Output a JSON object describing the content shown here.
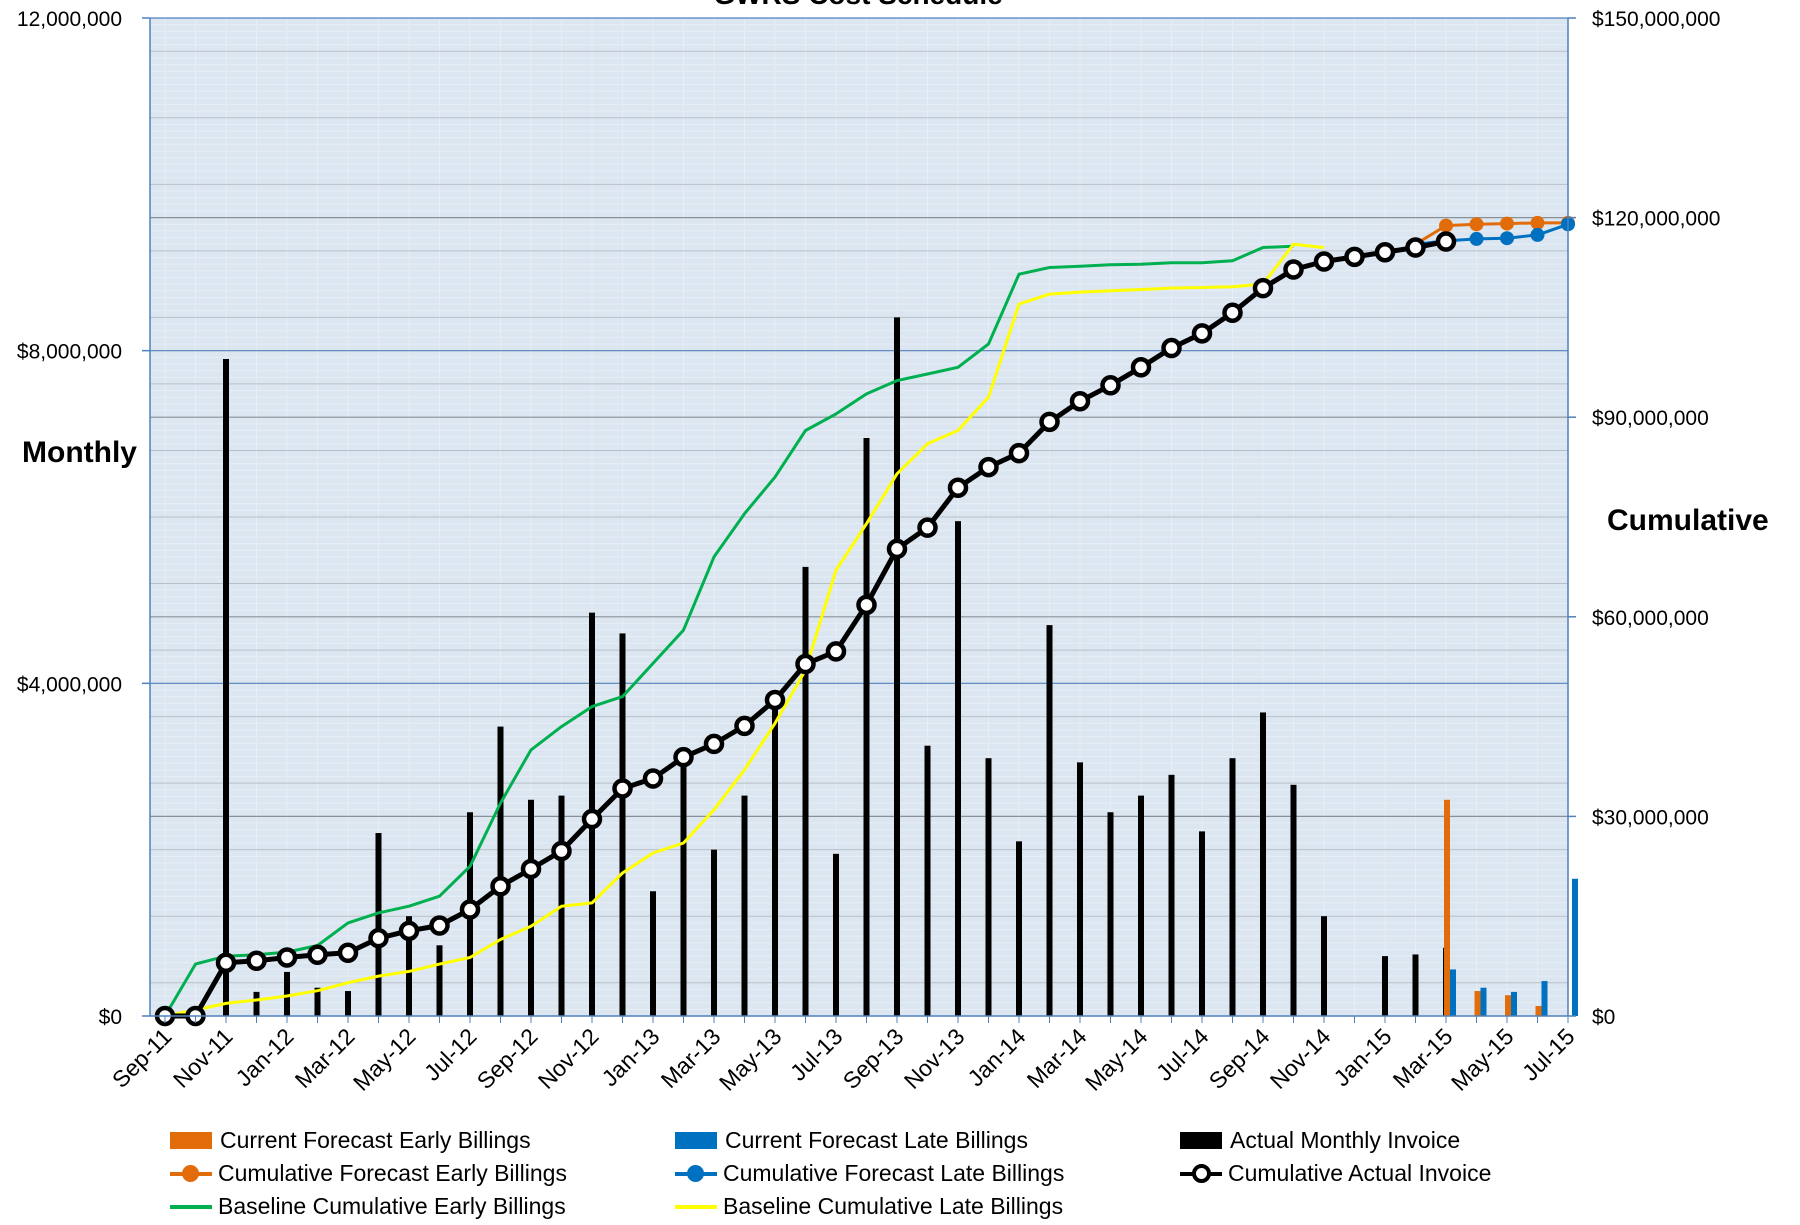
{
  "chart_data": {
    "type": "bar",
    "title": "GWRS Cost Schedule",
    "ylabel": "Monthly",
    "y2label": "Cumulative",
    "ylim": [
      0,
      12000000
    ],
    "y2lim": [
      0,
      150000000
    ],
    "y_ticks": [
      "$0",
      "$4,000,000",
      "$8,000,000",
      "12,000,000"
    ],
    "y2_ticks": [
      "$0",
      "$30,000,000",
      "$60,000,000",
      "$90,000,000",
      "$120,000,000",
      "$150,000,000"
    ],
    "x_tick_labels": [
      "Sep-11",
      "Nov-11",
      "Jan-12",
      "Mar-12",
      "May-12",
      "Jul-12",
      "Sep-12",
      "Nov-12",
      "Jan-13",
      "Mar-13",
      "May-13",
      "Jul-13",
      "Sep-13",
      "Nov-13",
      "Jan-14",
      "Mar-14",
      "May-14",
      "Jul-14",
      "Sep-14",
      "Nov-14",
      "Jan-15",
      "Mar-15",
      "May-15",
      "Jul-15"
    ],
    "months": [
      "Sep-11",
      "Oct-11",
      "Nov-11",
      "Dec-11",
      "Jan-12",
      "Feb-12",
      "Mar-12",
      "Apr-12",
      "May-12",
      "Jun-12",
      "Jul-12",
      "Aug-12",
      "Sep-12",
      "Oct-12",
      "Nov-12",
      "Dec-12",
      "Jan-13",
      "Feb-13",
      "Mar-13",
      "Apr-13",
      "May-13",
      "Jun-13",
      "Jul-13",
      "Aug-13",
      "Sep-13",
      "Oct-13",
      "Nov-13",
      "Dec-13",
      "Jan-14",
      "Feb-14",
      "Mar-14",
      "Apr-14",
      "May-14",
      "Jun-14",
      "Jul-14",
      "Aug-14",
      "Sep-14",
      "Oct-14",
      "Nov-14",
      "Dec-14",
      "Jan-15",
      "Feb-15",
      "Mar-15",
      "Apr-15",
      "May-15",
      "Jun-15",
      "Jul-15"
    ],
    "grid": true,
    "legend_position": "bottom",
    "series": [
      {
        "name": "Current Forecast Early Billings",
        "kind": "bar",
        "axis": "left",
        "color": "#E36C0A",
        "start_index": 42,
        "values": [
          2600000,
          300000,
          250000,
          120000,
          0
        ]
      },
      {
        "name": "Current Forecast Late Billings",
        "kind": "bar",
        "axis": "left",
        "color": "#0070C0",
        "start_index": 42,
        "values": [
          560000,
          340000,
          290000,
          420000,
          1650000
        ]
      },
      {
        "name": "Actual Monthly Invoice",
        "kind": "bar",
        "axis": "left",
        "color": "#000000",
        "start_index": 0,
        "values": [
          0,
          0,
          7900000,
          290000,
          530000,
          340000,
          300000,
          2200000,
          1200000,
          850000,
          2450000,
          3480000,
          2600000,
          2650000,
          4850000,
          4600000,
          1500000,
          3200000,
          2000000,
          2650000,
          3900000,
          5400000,
          1950000,
          6950000,
          8400000,
          3250000,
          5950000,
          3100000,
          2100000,
          4700000,
          3050000,
          2450000,
          2650000,
          2900000,
          2220000,
          3100000,
          3650000,
          2780000,
          1200000,
          0,
          720000,
          740000,
          820000
        ]
      },
      {
        "name": "Cumulative Forecast Early Billings",
        "kind": "line",
        "axis": "right",
        "color": "#E36C0A",
        "marker": "circle",
        "start_index": 41,
        "values": [
          116000000,
          118800000,
          119000000,
          119100000,
          119200000,
          119200000
        ]
      },
      {
        "name": "Cumulative Forecast Late Billings",
        "kind": "line",
        "axis": "right",
        "color": "#0070C0",
        "marker": "circle",
        "start_index": 41,
        "values": [
          116000000,
          116500000,
          116800000,
          116900000,
          117400000,
          119000000
        ]
      },
      {
        "name": "Cumulative Actual Invoice",
        "kind": "line",
        "axis": "right",
        "color": "#000000",
        "marker": "circle-open",
        "start_index": 0,
        "values": [
          0,
          0,
          8000000,
          8300000,
          8800000,
          9200000,
          9500000,
          11700000,
          12800000,
          13600000,
          16000000,
          19500000,
          22100000,
          24800000,
          29600000,
          34200000,
          35700000,
          38900000,
          40900000,
          43600000,
          47500000,
          52900000,
          54800000,
          61800000,
          70200000,
          73400000,
          79400000,
          82500000,
          84600000,
          89300000,
          92400000,
          94800000,
          97500000,
          100400000,
          102600000,
          105700000,
          109400000,
          112200000,
          113400000,
          114100000,
          114800000,
          115500000,
          116400000
        ]
      },
      {
        "name": "Baseline Cumulative Early Billings",
        "kind": "line",
        "axis": "right",
        "color": "#00B050",
        "start_index": 0,
        "values": [
          0,
          7800000,
          9000000,
          9200000,
          9600000,
          10600000,
          14000000,
          15500000,
          16500000,
          18000000,
          22500000,
          32000000,
          40000000,
          43500000,
          46500000,
          48000000,
          53000000,
          58000000,
          69000000,
          75500000,
          81000000,
          88000000,
          90500000,
          93500000,
          95500000,
          96500000,
          97500000,
          101000000,
          111500000,
          112500000,
          112700000,
          112900000,
          113000000,
          113200000,
          113200000,
          113500000,
          115500000,
          115700000
        ]
      },
      {
        "name": "Baseline Cumulative Late Billings",
        "kind": "line",
        "axis": "right",
        "color": "#FFFF00",
        "start_index": 0,
        "values": [
          0,
          900000,
          1900000,
          2400000,
          3000000,
          3800000,
          5000000,
          6000000,
          6700000,
          7800000,
          8800000,
          11500000,
          13500000,
          16500000,
          17000000,
          21500000,
          24500000,
          26000000,
          31000000,
          37000000,
          44000000,
          52000000,
          67000000,
          74000000,
          81500000,
          86000000,
          88000000,
          93000000,
          107000000,
          108500000,
          108800000,
          109000000,
          109200000,
          109400000,
          109500000,
          109600000,
          110000000,
          116000000,
          115500000
        ]
      }
    ]
  }
}
